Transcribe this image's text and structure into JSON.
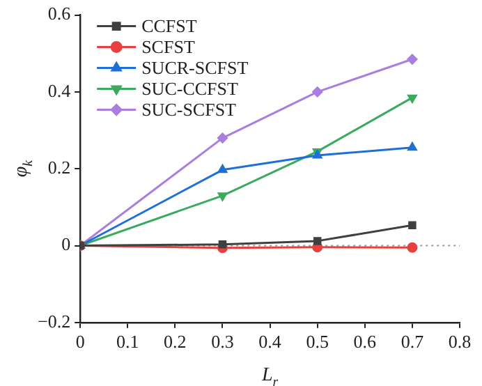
{
  "chart_data": {
    "type": "line",
    "xlabel": "L$_{r}$",
    "ylabel": "φ$_{k}$",
    "x": [
      0,
      0.3,
      0.5,
      0.7
    ],
    "xlim": [
      0,
      0.8
    ],
    "xticks": [
      0,
      0.1,
      0.2,
      0.3,
      0.4,
      0.5,
      0.6,
      0.7,
      0.8
    ],
    "ylim": [
      -0.2,
      0.6
    ],
    "yticks": [
      {
        "value": -0.2,
        "label": "−0.2"
      },
      0,
      0.2,
      0.4,
      0.6
    ],
    "grid": false,
    "legend": "top left",
    "line_style": "solid",
    "ref_lines": [
      {
        "axis": "y",
        "value": 0,
        "color": "#999999",
        "line_style": "dotted"
      }
    ],
    "series": [
      {
        "name": "CCFST",
        "color": "#404040",
        "marker": "square",
        "values": [
          0,
          0.003,
          0.012,
          0.053
        ]
      },
      {
        "name": "SCFST",
        "color": "#e8403f",
        "marker": "circle",
        "values": [
          0,
          -0.006,
          -0.004,
          -0.005
        ]
      },
      {
        "name": "SUCR-SCFST",
        "color": "#1f6fd8",
        "marker": "triangle",
        "values": [
          0,
          0.197,
          0.235,
          0.255
        ]
      },
      {
        "name": "SUC-CCFST",
        "color": "#3aaa5f",
        "marker": "triangle-down",
        "values": [
          0,
          0.13,
          0.245,
          0.385
        ]
      },
      {
        "name": "SUC-SCFST",
        "color": "#a97ee0",
        "marker": "diamond",
        "values": [
          0,
          0.28,
          0.4,
          0.485
        ]
      }
    ]
  }
}
